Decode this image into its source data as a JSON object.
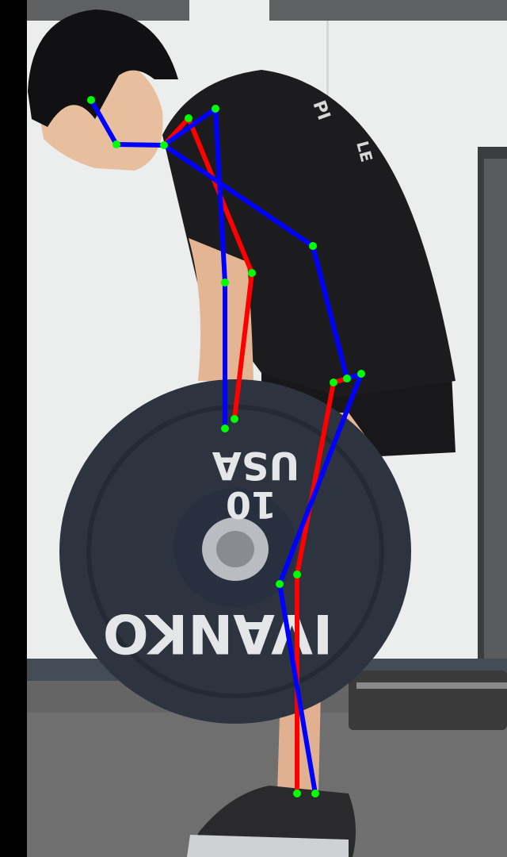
{
  "scene": {
    "plate_texts": {
      "origin": "USA",
      "weight": "10",
      "brand": "IVANKO"
    },
    "shirt_texts": {
      "upper": "PI",
      "lower": "LE"
    }
  },
  "pose_overlay": {
    "colors": {
      "left_limb": "#ff0000",
      "right_limb": "#0000ff",
      "keypoint": "#00ff00"
    },
    "keypoints": [
      "nose",
      "right-eye",
      "neck",
      "left-shoulder",
      "right-shoulder",
      "left-elbow",
      "right-elbow",
      "left-wrist",
      "right-wrist",
      "right-hip",
      "left-hip",
      "left-knee",
      "right-knee",
      "left-ankle",
      "right-ankle"
    ]
  }
}
